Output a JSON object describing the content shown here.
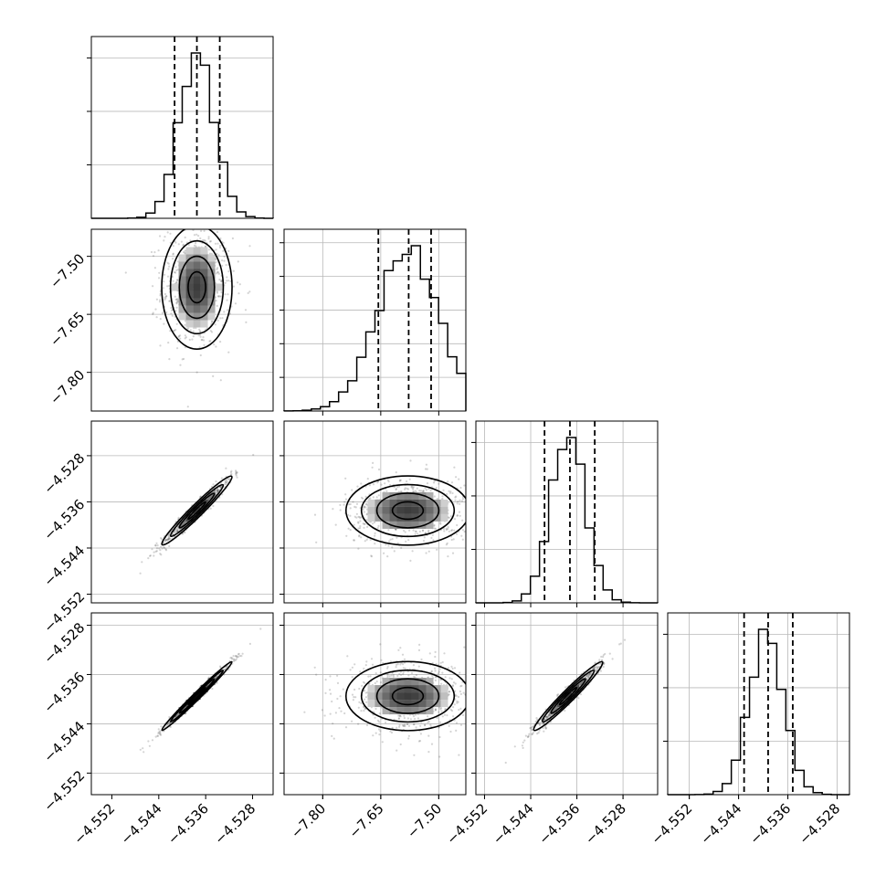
{
  "chart_data": {
    "type": "corner",
    "parameters": [
      {
        "index": 0,
        "range": [
          -4.5555,
          -4.5245
        ],
        "mean": -4.5375,
        "sigma": 0.003,
        "ticks": [],
        "tick_labels": [],
        "quantiles": [
          -4.5413,
          -4.5375,
          -4.5336
        ],
        "y_tick_count": 3
      },
      {
        "index": 1,
        "range": [
          -7.9,
          -7.43
        ],
        "mean": -7.58,
        "sigma": 0.08,
        "ticks": [
          -7.8,
          -7.65,
          -7.5
        ],
        "tick_labels": [
          "−7.80",
          "−7.65",
          "−7.50"
        ],
        "quantiles": [
          -7.6562,
          -7.5778,
          -7.5198
        ],
        "y_tick_count": 5
      },
      {
        "index": 2,
        "range": [
          -4.5535,
          -4.522
        ],
        "mean": -4.5375,
        "sigma": 0.003,
        "ticks": [
          -4.528,
          -4.536,
          -4.544,
          -4.552
        ],
        "tick_labels": [
          "−4.528",
          "−4.536",
          "−4.544",
          "−4.552"
        ],
        "quantiles": [
          -4.5416,
          -4.5372,
          -4.5329
        ],
        "y_tick_count": 3
      },
      {
        "index": 3,
        "range": [
          -4.5555,
          -4.526
        ],
        "mean": -4.5395,
        "sigma": 0.0028,
        "ticks": [
          -4.528,
          -4.536,
          -4.544,
          -4.552
        ],
        "tick_labels": [
          "−4.528",
          "−4.536",
          "−4.544",
          "−4.552"
        ],
        "quantiles": [
          -4.5431,
          -4.5392,
          -4.5352
        ],
        "y_tick_count": 3
      }
    ],
    "bottom_tick_labels": [
      [
        "−4.552",
        "−4.544",
        "−4.536",
        "−4.528"
      ],
      [
        "−7.80",
        "−7.65",
        "−7.50"
      ],
      [
        "−4.552",
        "−4.544",
        "−4.536",
        "−4.528"
      ],
      [
        "−4.552",
        "−4.544",
        "−4.536",
        "−4.528"
      ]
    ],
    "correlations": {
      "2-0": 0.97,
      "3-0": 0.99,
      "3-2": 0.97,
      "1-0": 0.0,
      "2-1": 0.0,
      "3-1": 0.0
    },
    "histogram_bins": 20,
    "contour_levels_sigma": [
      0.5,
      1.0,
      1.5,
      2.0
    ],
    "grid": true,
    "title": "",
    "xlabel": "",
    "ylabel": ""
  }
}
